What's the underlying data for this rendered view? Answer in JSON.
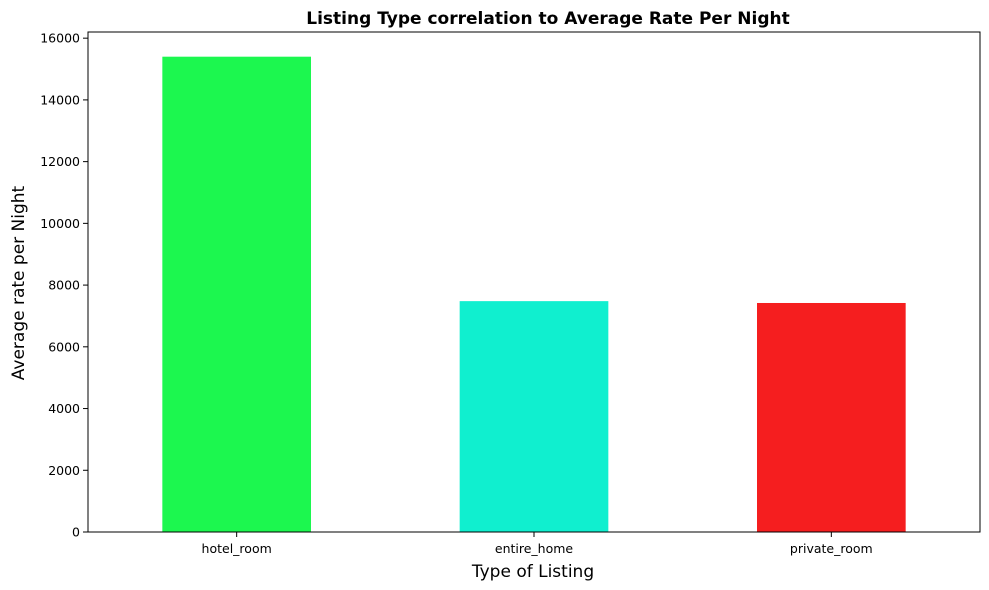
{
  "chart_data": {
    "type": "bar",
    "title": "Listing Type correlation to Average Rate Per Night",
    "xlabel": "Type of Listing",
    "ylabel": "Average rate per Night",
    "categories": [
      "hotel_room",
      "entire_home",
      "private_room"
    ],
    "values": [
      15400,
      7480,
      7420
    ],
    "colors": [
      "#1cf74f",
      "#10efcf",
      "#f51e1f"
    ],
    "ylim": [
      0,
      16200
    ],
    "yticks": [
      0,
      2000,
      4000,
      6000,
      8000,
      10000,
      12000,
      14000,
      16000
    ],
    "grid": false,
    "legend": false
  }
}
